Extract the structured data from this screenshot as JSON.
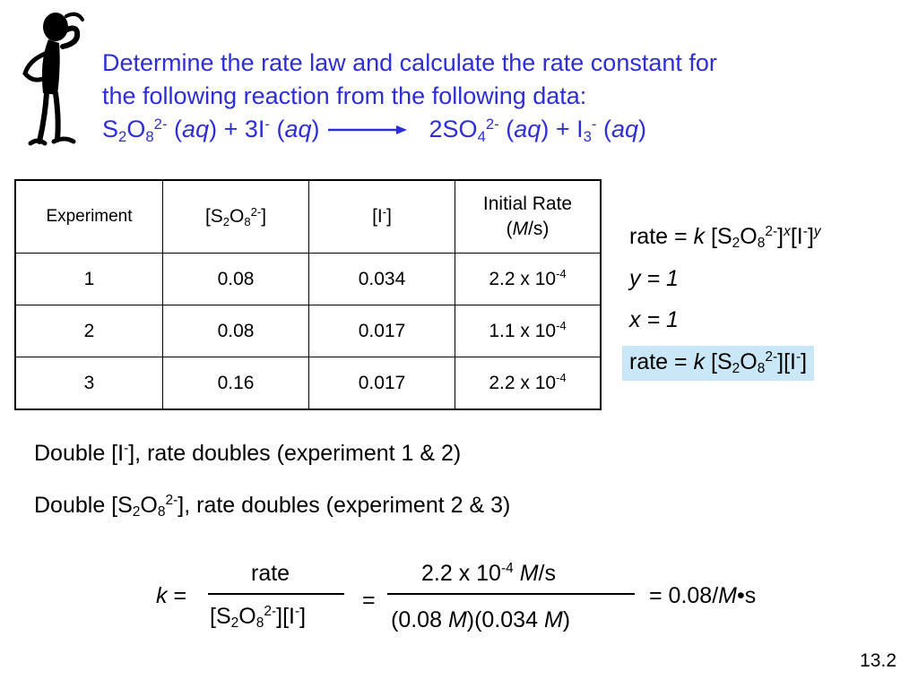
{
  "heading": {
    "line1": "Determine the rate law and calculate the rate constant for",
    "line2": "the following reaction from the following data:",
    "eq_s": "S",
    "eq_s_sub": "2",
    "eq_o": "O",
    "eq_o_sub": "8",
    "eq_persulfate_charge": "2-",
    "eq_state1": "aq",
    "eq_plus1": " + 3I",
    "eq_iodide_charge": "-",
    "eq_state2": "aq",
    "eq_product1": "2SO",
    "eq_product1_sub": "4",
    "eq_product1_charge": "2-",
    "eq_state3": "aq",
    "eq_plus2": " + I",
    "eq_product2_sub": "3",
    "eq_product2_charge": "-",
    "eq_state4": "aq"
  },
  "table": {
    "headers": {
      "experiment": "Experiment",
      "persulfate_open": "[S",
      "persulfate_s_sub": "2",
      "persulfate_o": "O",
      "persulfate_o_sub": "8",
      "persulfate_charge": "2-",
      "persulfate_close": "]",
      "iodide_open": "[I",
      "iodide_charge": "-",
      "iodide_close": "]",
      "rate_line1": "Initial Rate",
      "rate_unit_open": "(",
      "rate_unit_M": "M",
      "rate_unit_rest": "/s)"
    },
    "rows": [
      {
        "experiment": "1",
        "persulfate": "0.08",
        "iodide": "0.034",
        "rate_base": "2.2 x 10",
        "rate_exp": "-4"
      },
      {
        "experiment": "2",
        "persulfate": "0.08",
        "iodide": "0.017",
        "rate_base": "1.1 x 10",
        "rate_exp": "-4"
      },
      {
        "experiment": "3",
        "persulfate": "0.16",
        "iodide": "0.017",
        "rate_base": "2.2 x 10",
        "rate_exp": "-4"
      }
    ]
  },
  "rate_law": {
    "general_prefix": "rate = ",
    "k": "k",
    "persulfate_open": " [S",
    "s_sub": "2",
    "o": "O",
    "o_sub": "8",
    "persulfate_charge": "2-",
    "persulfate_close": "]",
    "x_exp": "x",
    "iodide_open": "[I",
    "iodide_charge": "-",
    "iodide_close": "]",
    "y_exp": "y",
    "y_result": "y = 1",
    "x_result": "x = 1",
    "final_prefix": "rate = ",
    "final_k": "k",
    "final_persulfate_open": " [S",
    "final_s_sub": "2",
    "final_o": "O",
    "final_o_sub": "8",
    "final_persulfate_charge": "2-",
    "final_mid": "][I",
    "final_iodide_charge": "-",
    "final_close": "]",
    "highlight_color": "#c9e7f6"
  },
  "statements": {
    "s1_pre": "Double [I",
    "s1_charge": "-",
    "s1_post": "], rate doubles (experiment 1 & 2)",
    "s2_pre": "Double [S",
    "s2_s_sub": "2",
    "s2_o": "O",
    "s2_o_sub": "8",
    "s2_charge": "2-",
    "s2_post": "], rate doubles (experiment 2 & 3)"
  },
  "calculation": {
    "k": "k",
    "eq1": " =",
    "num1": "rate",
    "den1_open": "[S",
    "den1_s_sub": "2",
    "den1_o": "O",
    "den1_o_sub": "8",
    "den1_charge": "2-",
    "den1_mid": "][I",
    "den1_iodide_charge": "-",
    "den1_close": "]",
    "eq2": "=",
    "num2_base": "2.2 x 10",
    "num2_exp": "-4",
    "num2_M": "M",
    "num2_rest": "/s",
    "den2_a": "(0.08 ",
    "den2_M1": "M",
    "den2_b": ")(0.034 ",
    "den2_M2": "M",
    "den2_c": ")",
    "result_pre": "= 0.08/",
    "result_M": "M",
    "result_post": "•s"
  },
  "slide_number": "13.2",
  "colors": {
    "heading": "#2e2ed6"
  },
  "icons": {
    "figure": "thinking-person-figure"
  }
}
